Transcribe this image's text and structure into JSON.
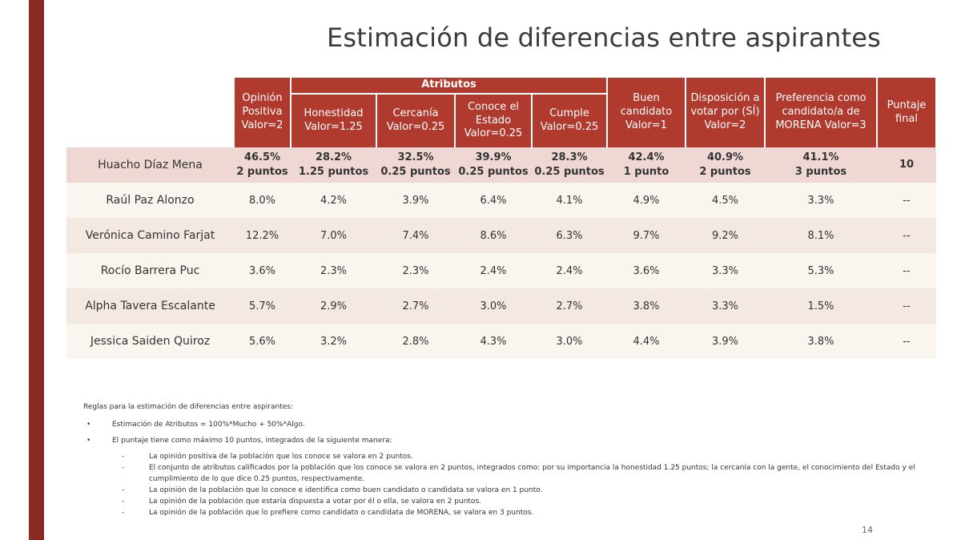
{
  "title": "Estimación de diferencias entre aspirantes",
  "colors": {
    "header_bg": "#b03a2e",
    "side_bar": "#8a2a22",
    "row_highlight": "#efd8d4",
    "row_alt": "#f4e9e2"
  },
  "table": {
    "group_header": "Atributos",
    "headers": {
      "opinion": "Opinión Positiva Valor=2",
      "honestidad": "Honestidad Valor=1.25",
      "cercania": "Cercanía Valor=0.25",
      "conoce": "Conoce el Estado Valor=0.25",
      "cumple": "Cumple Valor=0.25",
      "buen": "Buen candidato Valor=1",
      "disposicion": "Disposición a votar por (SÍ) Valor=2",
      "preferencia": "Preferencia como candidato/a de MORENA Valor=3",
      "puntaje": "Puntaje final"
    },
    "rows": [
      {
        "name": "Huacho Díaz Mena",
        "opinion": "46.5%",
        "opinion_pts": "2 puntos",
        "honestidad": "28.2%",
        "honestidad_pts": "1.25 puntos",
        "cercania": "32.5%",
        "cercania_pts": "0.25 puntos",
        "conoce": "39.9%",
        "conoce_pts": "0.25 puntos",
        "cumple": "28.3%",
        "cumple_pts": "0.25 puntos",
        "buen": "42.4%",
        "buen_pts": "1 punto",
        "disposicion": "40.9%",
        "disposicion_pts": "2 puntos",
        "preferencia": "41.1%",
        "preferencia_pts": "3 puntos",
        "puntaje": "10"
      },
      {
        "name": "Raúl Paz Alonzo",
        "opinion": "8.0%",
        "honestidad": "4.2%",
        "cercania": "3.9%",
        "conoce": "6.4%",
        "cumple": "4.1%",
        "buen": "4.9%",
        "disposicion": "4.5%",
        "preferencia": "3.3%",
        "puntaje": "--"
      },
      {
        "name": "Verónica Camino Farjat",
        "opinion": "12.2%",
        "honestidad": "7.0%",
        "cercania": "7.4%",
        "conoce": "8.6%",
        "cumple": "6.3%",
        "buen": "9.7%",
        "disposicion": "9.2%",
        "preferencia": "8.1%",
        "puntaje": "--"
      },
      {
        "name": "Rocío Barrera Puc",
        "opinion": "3.6%",
        "honestidad": "2.3%",
        "cercania": "2.3%",
        "conoce": "2.4%",
        "cumple": "2.4%",
        "buen": "3.6%",
        "disposicion": "3.3%",
        "preferencia": "5.3%",
        "puntaje": "--"
      },
      {
        "name": "Alpha Tavera Escalante",
        "opinion": "5.7%",
        "honestidad": "2.9%",
        "cercania": "2.7%",
        "conoce": "3.0%",
        "cumple": "2.7%",
        "buen": "3.8%",
        "disposicion": "3.3%",
        "preferencia": "1.5%",
        "puntaje": "--"
      },
      {
        "name": "Jessica Saiden Quiroz",
        "opinion": "5.6%",
        "honestidad": "3.2%",
        "cercania": "2.8%",
        "conoce": "4.3%",
        "cumple": "3.0%",
        "buen": "4.4%",
        "disposicion": "3.9%",
        "preferencia": "3.8%",
        "puntaje": "--"
      }
    ]
  },
  "notes": {
    "intro": "Reglas para la estimación de diferencias entre aspirantes:",
    "bullet1": "Estimación de Atributos = 100%*Mucho + 50%*Algo.",
    "bullet2": "El puntaje tiene como máximo 10 puntos, integrados de la siguiente manera:",
    "sub": [
      "La opinión positiva de la población que los conoce se valora en 2 puntos.",
      "El conjunto de atributos calificados por la población que los conoce se valora en 2 puntos, integrados como: por su importancia la honestidad 1.25 puntos; la cercanía con la gente, el conocimiento del Estado y el cumplimiento de lo que dice 0.25 puntos, respectivamente.",
      "La opinión de la población que lo conoce e identifica como buen candidato o candidata se valora en 1 punto.",
      "La opinión de la población que estaría dispuesta a votar por él o ella, se valora en 2 puntos.",
      "La opinión de la población que lo prefiere como candidato o candidata de MORENA, se valora en 3 puntos."
    ],
    "bullet_glyph": "•",
    "dash_glyph": "-"
  },
  "page_number": "14"
}
